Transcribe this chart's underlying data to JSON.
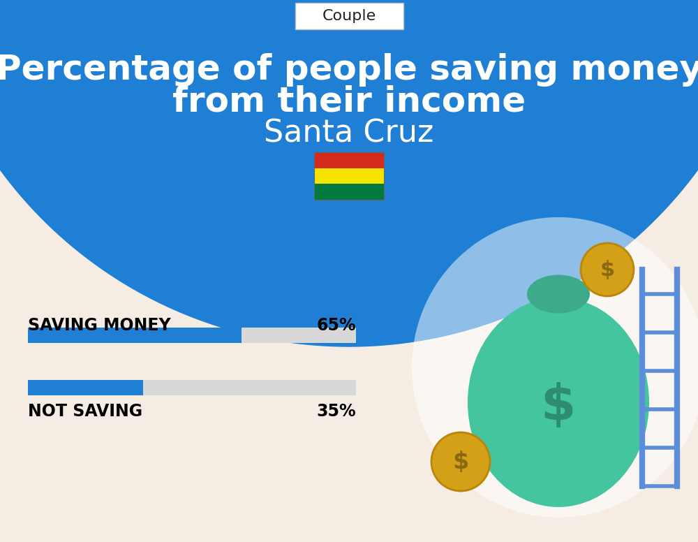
{
  "title_line1": "Percentage of people saving money",
  "title_line2": "from their income",
  "subtitle": "Santa Cruz",
  "tab_label": "Couple",
  "bg_top_color": "#1F7FD4",
  "bg_bottom_color": "#F5EDE3",
  "bar_color": "#1F7FD4",
  "bar_bg_color": "#D8D8D8",
  "categories": [
    "SAVING MONEY",
    "NOT SAVING"
  ],
  "values": [
    65,
    35
  ],
  "label_fontsize": 17,
  "value_fontsize": 17,
  "title_fontsize": 36,
  "subtitle_fontsize": 32,
  "tab_fontsize": 16
}
